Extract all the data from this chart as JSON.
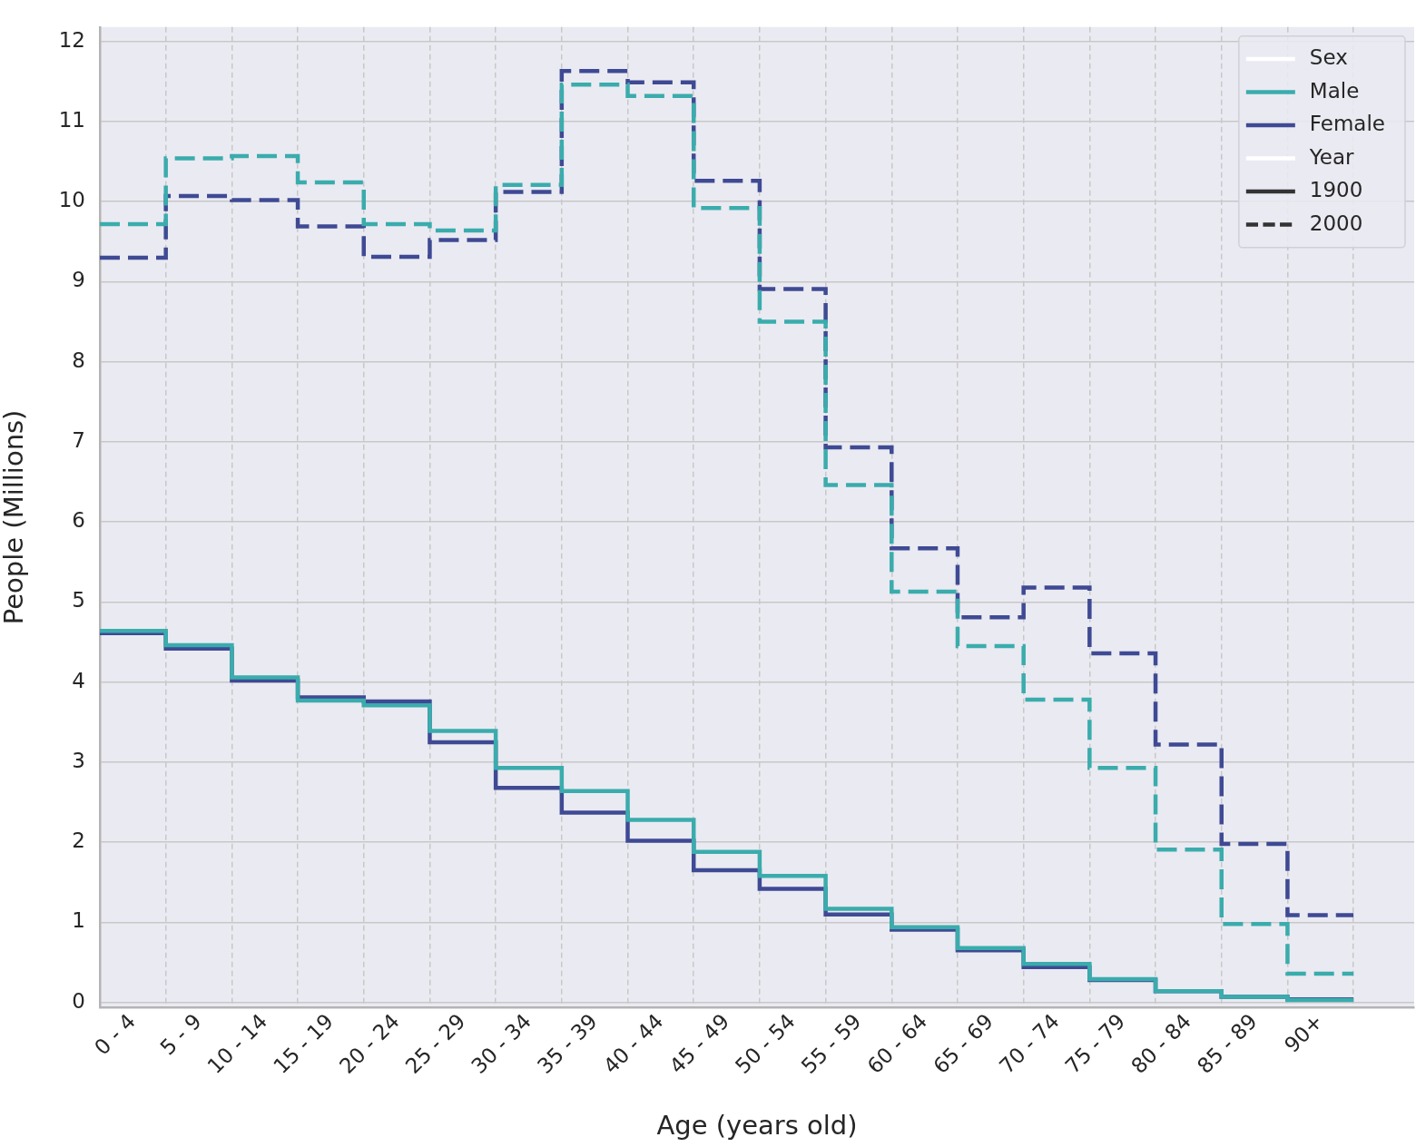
{
  "chart_data": {
    "type": "step",
    "xlabel": "Age (years old)",
    "ylabel": "People (Millions)",
    "legend_title": "Sex",
    "annotations": [
      "Year",
      "1900",
      "2000"
    ],
    "categories": [
      "0 - 4",
      "5 - 9",
      "10 - 14",
      "15 - 19",
      "20 - 24",
      "25 - 29",
      "30 - 34",
      "35 - 39",
      "40 - 44",
      "45 - 49",
      "50 - 54",
      "55 - 59",
      "60 - 64",
      "65 - 69",
      "70 - 74",
      "75 - 79",
      "80 - 84",
      "85 - 89",
      "90+"
    ],
    "series": [
      {
        "name": "Male",
        "color": "#3aacac",
        "line_style": "solid",
        "values": [
          4.64,
          4.46,
          4.06,
          3.77,
          3.71,
          3.39,
          2.93,
          2.64,
          2.28,
          1.88,
          1.58,
          1.17,
          0.94,
          0.68,
          0.48,
          0.29,
          0.14,
          0.07,
          0.03
        ]
      },
      {
        "name": "Female",
        "color": "#3f4a94",
        "line_style": "solid",
        "values": [
          4.61,
          4.42,
          4.02,
          3.81,
          3.76,
          3.25,
          2.68,
          2.37,
          2.02,
          1.65,
          1.42,
          1.1,
          0.91,
          0.65,
          0.44,
          0.28,
          0.14,
          0.07,
          0.04
        ]
      },
      {
        "color": "#3aacac",
        "line_style": "dashed",
        "values": [
          9.72,
          10.54,
          10.57,
          10.24,
          9.72,
          9.64,
          10.21,
          11.46,
          11.32,
          9.92,
          8.5,
          6.46,
          5.13,
          4.45,
          3.78,
          2.93,
          1.91,
          0.98,
          0.36
        ]
      },
      {
        "color": "#3f4a94",
        "line_style": "dashed",
        "values": [
          9.3,
          10.07,
          10.02,
          9.69,
          9.31,
          9.52,
          10.12,
          11.63,
          11.49,
          10.26,
          8.91,
          6.93,
          5.67,
          4.81,
          5.18,
          4.36,
          3.22,
          1.98,
          1.09
        ]
      }
    ],
    "ylim": [
      -0.06,
      12.18
    ],
    "yticks": [
      0,
      1,
      2,
      3,
      4,
      5,
      6,
      7,
      8,
      9,
      10,
      11,
      12
    ],
    "grid": true,
    "legend": "top right"
  }
}
